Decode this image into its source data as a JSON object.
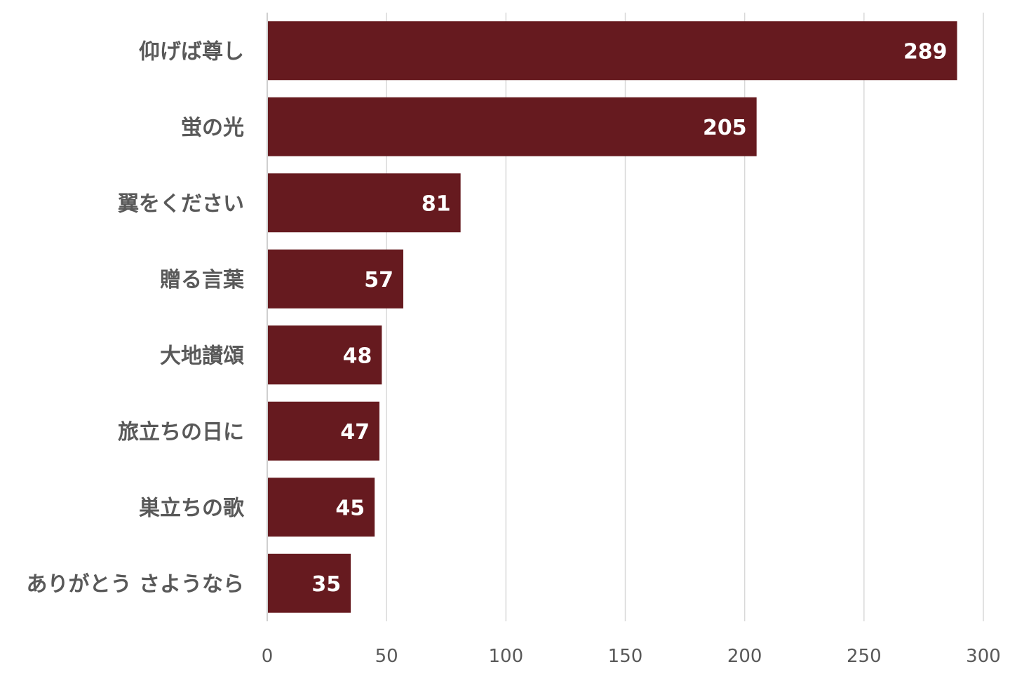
{
  "chart_data": {
    "type": "bar",
    "orientation": "horizontal",
    "title": "",
    "xlabel": "",
    "ylabel": "",
    "categories": [
      "仰げば尊し",
      "蛍の光",
      "翼をください",
      "贈る言葉",
      "大地讃頌",
      "旅立ちの日に",
      "巣立ちの歌",
      "ありがとう さようなら"
    ],
    "values": [
      289,
      205,
      81,
      57,
      48,
      47,
      45,
      35
    ],
    "xlim": [
      0,
      300
    ],
    "x_ticks": [
      0,
      50,
      100,
      150,
      200,
      250,
      300
    ],
    "grid": "vertical",
    "legend": "none",
    "data_labels": "inside-end",
    "bar_color": "#661a1f",
    "label_color": "#595959",
    "data_label_color": "#ffffff",
    "grid_color": "#d9d9d9"
  }
}
